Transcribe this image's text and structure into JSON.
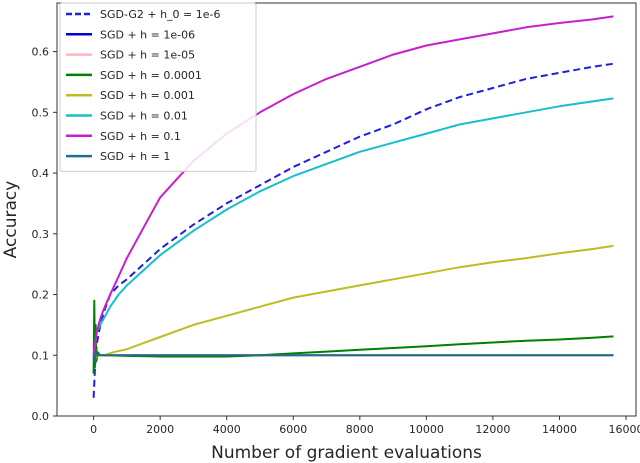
{
  "chart_data": {
    "type": "line",
    "title": "",
    "xlabel": "Number of gradient evaluations",
    "ylabel": "Accuracy",
    "xlim": [
      -1100,
      16300
    ],
    "ylim": [
      0,
      0.68
    ],
    "xticks": [
      0,
      2000,
      4000,
      6000,
      8000,
      10000,
      12000,
      14000,
      16000
    ],
    "yticks": [
      0.0,
      0.1,
      0.2,
      0.3,
      0.4,
      0.5,
      0.6
    ],
    "grid": false,
    "legend_position": "top-left",
    "series": [
      {
        "name": "SGD-G2 + h_0 = 1e-6",
        "color": "#1f1fdf",
        "dash": "dashed",
        "x": [
          0,
          50,
          100,
          200,
          300,
          500,
          750,
          1000,
          1500,
          2000,
          3000,
          4000,
          5000,
          6000,
          7000,
          8000,
          9000,
          10000,
          11000,
          12000,
          13000,
          14000,
          15000,
          15625
        ],
        "y": [
          0.03,
          0.09,
          0.12,
          0.15,
          0.17,
          0.2,
          0.215,
          0.225,
          0.25,
          0.275,
          0.315,
          0.35,
          0.38,
          0.41,
          0.435,
          0.46,
          0.48,
          0.505,
          0.525,
          0.54,
          0.555,
          0.565,
          0.575,
          0.58
        ]
      },
      {
        "name": "SGD + h = 1e-06",
        "color": "#0000cc",
        "dash": "solid",
        "x": [
          0,
          50,
          100,
          300,
          600,
          1000,
          15625
        ],
        "y": [
          0.1,
          0.1,
          0.1,
          0.1,
          0.1,
          0.1,
          0.1
        ]
      },
      {
        "name": "SGD + h = 1e-05",
        "color": "#ffb6c1",
        "dash": "solid",
        "x": [
          0,
          50,
          100,
          300,
          600,
          1000,
          15625
        ],
        "y": [
          0.1,
          0.1,
          0.1,
          0.1,
          0.1,
          0.1,
          0.1
        ]
      },
      {
        "name": "SGD + h = 0.0001",
        "color": "#008000",
        "dash": "solid",
        "x": [
          0,
          20,
          40,
          60,
          80,
          120,
          200,
          400,
          1000,
          2000,
          3000,
          4000,
          5000,
          6000,
          7000,
          8000,
          9000,
          10000,
          11000,
          12000,
          13000,
          14000,
          15000,
          15625
        ],
        "y": [
          0.07,
          0.19,
          0.08,
          0.15,
          0.09,
          0.105,
          0.1,
          0.1,
          0.099,
          0.098,
          0.098,
          0.098,
          0.1,
          0.103,
          0.106,
          0.109,
          0.112,
          0.115,
          0.118,
          0.121,
          0.124,
          0.126,
          0.129,
          0.131
        ]
      },
      {
        "name": "SGD + h = 0.001",
        "color": "#bcbd22",
        "dash": "solid",
        "x": [
          0,
          50,
          100,
          300,
          600,
          1000,
          1500,
          2000,
          3000,
          4000,
          5000,
          6000,
          7000,
          8000,
          9000,
          10000,
          11000,
          12000,
          13000,
          14000,
          15000,
          15625
        ],
        "y": [
          0.1,
          0.095,
          0.1,
          0.1,
          0.105,
          0.11,
          0.12,
          0.13,
          0.15,
          0.165,
          0.18,
          0.195,
          0.205,
          0.215,
          0.225,
          0.235,
          0.245,
          0.253,
          0.26,
          0.268,
          0.275,
          0.28
        ]
      },
      {
        "name": "SGD + h = 0.01",
        "color": "#17becf",
        "dash": "solid",
        "x": [
          0,
          50,
          100,
          200,
          300,
          500,
          750,
          1000,
          1500,
          2000,
          3000,
          4000,
          5000,
          6000,
          7000,
          8000,
          9000,
          10000,
          11000,
          12000,
          13000,
          14000,
          15000,
          15625
        ],
        "y": [
          0.1,
          0.12,
          0.14,
          0.15,
          0.16,
          0.18,
          0.2,
          0.215,
          0.24,
          0.265,
          0.305,
          0.34,
          0.37,
          0.395,
          0.415,
          0.435,
          0.45,
          0.465,
          0.48,
          0.49,
          0.5,
          0.51,
          0.518,
          0.523
        ]
      },
      {
        "name": "SGD + h = 0.1",
        "color": "#c71fcc",
        "dash": "solid",
        "x": [
          0,
          50,
          100,
          200,
          300,
          500,
          750,
          1000,
          1500,
          2000,
          3000,
          4000,
          5000,
          6000,
          7000,
          8000,
          9000,
          10000,
          11000,
          12000,
          13000,
          14000,
          15000,
          15625
        ],
        "y": [
          0.1,
          0.12,
          0.14,
          0.16,
          0.175,
          0.2,
          0.23,
          0.26,
          0.31,
          0.36,
          0.42,
          0.465,
          0.5,
          0.53,
          0.555,
          0.575,
          0.595,
          0.61,
          0.62,
          0.63,
          0.64,
          0.647,
          0.653,
          0.658
        ]
      },
      {
        "name": "SGD + h = 1",
        "color": "#1f6f8b",
        "dash": "solid",
        "x": [
          0,
          20,
          40,
          60,
          100,
          200,
          400,
          1000,
          15625
        ],
        "y": [
          0.095,
          0.1,
          0.09,
          0.105,
          0.1,
          0.1,
          0.1,
          0.1,
          0.1
        ]
      }
    ]
  }
}
